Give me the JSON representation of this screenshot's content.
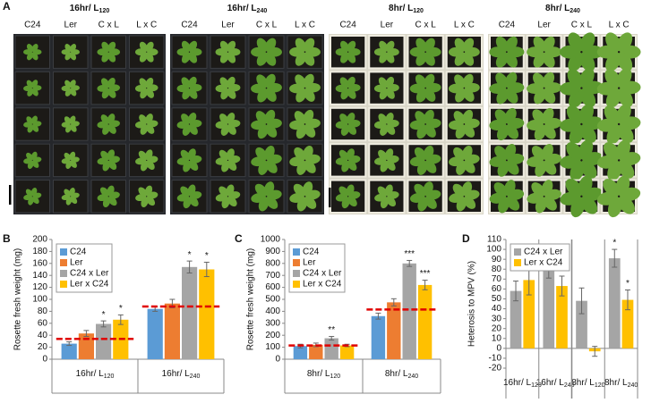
{
  "photo_panel": {
    "letter": "A",
    "trays": [
      {
        "title": "16hr/ L",
        "sub": "120",
        "columns": [
          "C24",
          "Ler",
          "C x L",
          "L x C"
        ]
      },
      {
        "title": "16hr/ L",
        "sub": "240",
        "columns": [
          "C24",
          "Ler",
          "C x L",
          "L x C"
        ]
      },
      {
        "title": "8hr/ L",
        "sub": "120",
        "columns": [
          "C24",
          "Ler",
          "C x L",
          "L x C"
        ]
      },
      {
        "title": "8hr/ L",
        "sub": "240",
        "columns": [
          "C24",
          "Ler",
          "C x L",
          "L x C"
        ]
      }
    ]
  },
  "chart_data": [
    {
      "type": "bar",
      "panel": "B",
      "y_label": "Rosette fresh weight (mg)",
      "categories": [
        {
          "label": "16hr/ L",
          "sub": "120"
        },
        {
          "label": "16hr/ L",
          "sub": "240"
        }
      ],
      "series": [
        {
          "name": "C24",
          "color": "#5b9bd5",
          "values": [
            26,
            84
          ],
          "errors": [
            3,
            4
          ],
          "stars": [
            null,
            null
          ]
        },
        {
          "name": "Ler",
          "color": "#ed7d31",
          "values": [
            43,
            93
          ],
          "errors": [
            5,
            7
          ],
          "stars": [
            null,
            null
          ]
        },
        {
          "name": "C24 x Ler",
          "color": "#a5a5a5",
          "values": [
            59,
            154
          ],
          "errors": [
            5,
            10
          ],
          "stars": [
            "*",
            "*"
          ]
        },
        {
          "name": "Ler x C24",
          "color": "#ffc000",
          "values": [
            66,
            150
          ],
          "errors": [
            8,
            12
          ],
          "stars": [
            "*",
            "*"
          ]
        }
      ],
      "mpv": [
        34,
        88
      ],
      "mpv_color": "#e00000",
      "ylim": [
        0,
        200
      ],
      "yticks": [
        0,
        20,
        40,
        60,
        80,
        100,
        120,
        140,
        160,
        180,
        200
      ],
      "legend": "upper left"
    },
    {
      "type": "bar",
      "panel": "C",
      "y_label": "Rosette fresh weight (mg)",
      "categories": [
        {
          "label": "8hr/ L",
          "sub": "120"
        },
        {
          "label": "8hr/ L",
          "sub": "240"
        }
      ],
      "series": [
        {
          "name": "C24",
          "color": "#5b9bd5",
          "values": [
            110,
            360
          ],
          "errors": [
            15,
            25
          ],
          "stars": [
            null,
            null
          ]
        },
        {
          "name": "Ler",
          "color": "#ed7d31",
          "values": [
            120,
            475
          ],
          "errors": [
            15,
            30
          ],
          "stars": [
            null,
            null
          ]
        },
        {
          "name": "C24 x Ler",
          "color": "#a5a5a5",
          "values": [
            175,
            800
          ],
          "errors": [
            15,
            25
          ],
          "stars": [
            "**",
            "***"
          ]
        },
        {
          "name": "Ler x C24",
          "color": "#ffc000",
          "values": [
            115,
            620
          ],
          "errors": [
            10,
            40
          ],
          "stars": [
            null,
            "***"
          ]
        }
      ],
      "mpv": [
        115,
        415
      ],
      "mpv_color": "#e00000",
      "ylim": [
        0,
        1000
      ],
      "yticks": [
        0,
        100,
        200,
        300,
        400,
        500,
        600,
        700,
        800,
        900,
        1000
      ],
      "legend": "upper left"
    },
    {
      "type": "bar",
      "panel": "D",
      "y_label": "Heterosis to MPV (%)",
      "categories": [
        {
          "label": "16hr/ L",
          "sub": "120"
        },
        {
          "label": "16hr/ L",
          "sub": "240"
        },
        {
          "label": "8hr/ L",
          "sub": "120"
        },
        {
          "label": "8hr/ L",
          "sub": "240"
        }
      ],
      "series": [
        {
          "name": "C24 x Ler",
          "color": "#a5a5a5",
          "values": [
            58,
            79,
            48,
            91
          ],
          "errors": [
            10,
            8,
            13,
            9
          ],
          "stars": [
            null,
            null,
            null,
            "*"
          ]
        },
        {
          "name": "Ler x C24",
          "color": "#ffc000",
          "values": [
            69,
            63,
            -3,
            49
          ],
          "errors": [
            15,
            10,
            5,
            10
          ],
          "stars": [
            null,
            null,
            null,
            "*"
          ]
        }
      ],
      "ylim": [
        -20,
        110
      ],
      "yticks": [
        -20,
        -10,
        0,
        10,
        20,
        30,
        40,
        50,
        60,
        70,
        80,
        90,
        100,
        110
      ],
      "legend": "upper left"
    }
  ]
}
